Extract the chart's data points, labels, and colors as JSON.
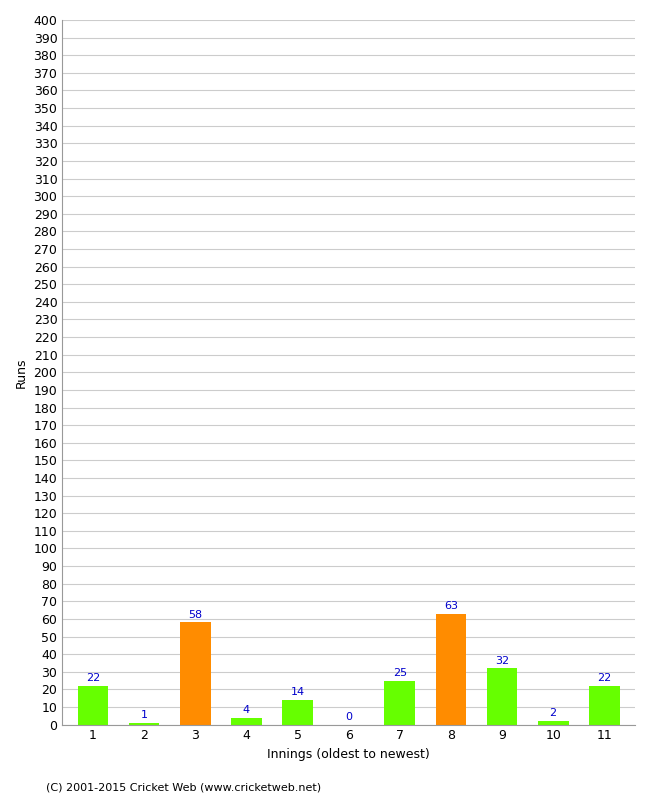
{
  "xlabel": "Innings (oldest to newest)",
  "ylabel": "Runs",
  "categories": [
    "1",
    "2",
    "3",
    "4",
    "5",
    "6",
    "7",
    "8",
    "9",
    "10",
    "11"
  ],
  "values": [
    22,
    1,
    58,
    4,
    14,
    0,
    25,
    63,
    32,
    2,
    22
  ],
  "bar_colors": [
    "#66ff00",
    "#66ff00",
    "#ff8c00",
    "#66ff00",
    "#66ff00",
    "#66ff00",
    "#66ff00",
    "#ff8c00",
    "#66ff00",
    "#66ff00",
    "#66ff00"
  ],
  "ylim": [
    0,
    400
  ],
  "ytick_step": 10,
  "label_color": "#0000cc",
  "background_color": "#ffffff",
  "grid_color": "#cccccc",
  "footer": "(C) 2001-2015 Cricket Web (www.cricketweb.net)",
  "label_fontsize": 8,
  "axis_fontsize": 9,
  "ylabel_fontsize": 9,
  "footer_fontsize": 8
}
